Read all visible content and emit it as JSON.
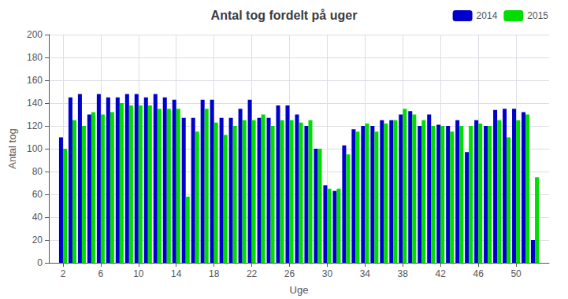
{
  "chart_data": {
    "type": "bar",
    "title": "Antal tog fordelt på uger",
    "x_label": "Uge",
    "y_label": "Antal tog",
    "x": [
      2,
      3,
      4,
      5,
      6,
      7,
      8,
      9,
      10,
      11,
      12,
      13,
      14,
      15,
      16,
      17,
      18,
      19,
      20,
      21,
      22,
      23,
      24,
      25,
      26,
      27,
      28,
      29,
      30,
      31,
      32,
      33,
      34,
      35,
      36,
      37,
      38,
      39,
      40,
      41,
      42,
      43,
      44,
      45,
      46,
      47,
      48,
      49,
      50,
      51,
      52
    ],
    "series": [
      {
        "name": "2014",
        "color": "#0000CC",
        "values": [
          110,
          145,
          148,
          130,
          148,
          145,
          145,
          148,
          148,
          145,
          148,
          145,
          143,
          127,
          127,
          143,
          143,
          127,
          127,
          135,
          143,
          127,
          127,
          138,
          138,
          130,
          120,
          100,
          68,
          63,
          103,
          117,
          120,
          120,
          125,
          125,
          130,
          133,
          120,
          130,
          121,
          120,
          125,
          97,
          125,
          120,
          134,
          135,
          135,
          132,
          20
        ]
      },
      {
        "name": "2015",
        "color": "#00DD00",
        "values": [
          100,
          125,
          120,
          132,
          130,
          132,
          140,
          138,
          138,
          138,
          135,
          135,
          135,
          58,
          115,
          135,
          123,
          112,
          120,
          125,
          125,
          130,
          120,
          125,
          125,
          123,
          125,
          100,
          65,
          65,
          95,
          115,
          122,
          115,
          122,
          125,
          135,
          130,
          125,
          120,
          120,
          115,
          120,
          120,
          122,
          120,
          125,
          110,
          125,
          130,
          75
        ]
      }
    ],
    "xlim": [
      0.5,
      53.5
    ],
    "xticks": [
      2,
      6,
      10,
      14,
      18,
      22,
      26,
      30,
      34,
      38,
      42,
      46,
      50
    ],
    "ylim": [
      0,
      200
    ],
    "yticks": [
      0,
      20,
      40,
      60,
      80,
      100,
      120,
      140,
      160,
      180,
      200
    ],
    "grid": true,
    "legend": "upper right"
  }
}
